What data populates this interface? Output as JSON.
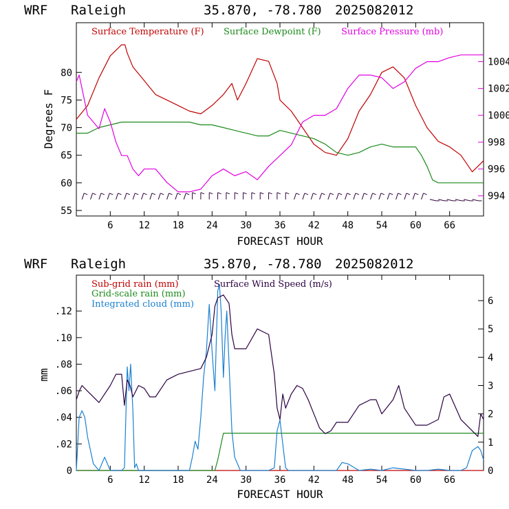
{
  "colors": {
    "temperature": "#c00000",
    "dewpoint": "#1a8a1a",
    "pressure": "#e000e0",
    "subgrid": "#c00000",
    "gridscale": "#1a8a1a",
    "cloud": "#1a80d0",
    "wind": "#2a0040",
    "barbs": "#30003a"
  },
  "chart_data": [
    {
      "type": "line",
      "header": {
        "model": "WRF",
        "site": "Raleigh",
        "coords": "35.870, -78.780",
        "run": "2025082012"
      },
      "xlabel": "FORECAST HOUR",
      "ylabel": "Degrees F",
      "xlim": [
        0,
        72
      ],
      "ylim": [
        54,
        89
      ],
      "y2lim": [
        992.5,
        1006.9
      ],
      "xticks": [
        6,
        12,
        18,
        24,
        30,
        36,
        42,
        48,
        54,
        60,
        66
      ],
      "xtick_labels": [
        "6",
        "12",
        "18",
        "24",
        "30",
        "36",
        "42",
        "48",
        "54",
        "60",
        "66"
      ],
      "yticks": [
        55,
        60,
        65,
        70,
        75,
        80
      ],
      "ytick_labels": [
        "55",
        "60",
        "65",
        "70",
        "75",
        "80"
      ],
      "y2ticks": [
        994,
        996,
        998,
        1000,
        1002,
        1004
      ],
      "y2tick_labels": [
        "994",
        "996",
        "998",
        "1000",
        "1002",
        "1004"
      ],
      "legend": [
        "Surface Temperature (F)",
        "Surface Dewpoint (F)",
        "Surface Pressure (mb)"
      ],
      "legend_position": "top-left",
      "wind_barbs": "y=57",
      "series": [
        {
          "name": "Surface Temperature (F)",
          "axis": "left",
          "x": [
            0,
            2,
            4,
            6,
            8,
            8.6,
            9,
            10,
            12,
            14,
            16,
            18,
            20,
            22,
            24,
            26,
            27.5,
            28.5,
            30,
            32,
            34,
            35.5,
            36,
            38,
            40,
            42,
            44,
            46,
            48,
            50,
            52,
            54,
            56,
            58,
            60,
            62,
            64,
            66,
            68,
            70,
            72
          ],
          "y": [
            71.5,
            74,
            79,
            83,
            85,
            85,
            83.5,
            81,
            78.5,
            76,
            75,
            74,
            73,
            72.5,
            74,
            76,
            78,
            75,
            78,
            82.5,
            82,
            78,
            75,
            73,
            70,
            67,
            65.5,
            65,
            68,
            73,
            76,
            80,
            81,
            79,
            74,
            70,
            67.5,
            66.5,
            65,
            62,
            64
          ]
        },
        {
          "name": "Surface Dewpoint (F)",
          "axis": "left",
          "x": [
            0,
            2,
            4,
            6,
            8,
            10,
            12,
            14,
            16,
            18,
            20,
            22,
            24,
            26,
            28,
            30,
            32,
            34,
            36,
            38,
            40,
            42,
            44,
            46,
            48,
            50,
            52,
            54,
            56,
            58,
            60,
            61,
            62,
            63,
            64,
            66,
            68,
            70,
            72
          ],
          "y": [
            69,
            69,
            70,
            70.5,
            71,
            71,
            71,
            71,
            71,
            71,
            71,
            70.5,
            70.5,
            70,
            69.5,
            69,
            68.5,
            68.5,
            69.5,
            69,
            68.5,
            68,
            67,
            65.5,
            65,
            65.5,
            66.5,
            67,
            66.5,
            66.5,
            66.5,
            65,
            63,
            60.5,
            60,
            60,
            60,
            60,
            60
          ]
        },
        {
          "name": "Surface Pressure (mb)",
          "axis": "right",
          "x": [
            0,
            0.5,
            1,
            2,
            3,
            4,
            5,
            6,
            7,
            8,
            9,
            10,
            11,
            12,
            14,
            16,
            18,
            20,
            22,
            24,
            26,
            28,
            30,
            32,
            34,
            36,
            38,
            40,
            42,
            44,
            46,
            48,
            50,
            52,
            54,
            56,
            58,
            60,
            62,
            64,
            66,
            68,
            70,
            72
          ],
          "y": [
            1002.5,
            1003,
            1002,
            1000,
            999.5,
            999,
            1000.5,
            999.5,
            998,
            997,
            997,
            996,
            995.5,
            996,
            996,
            995,
            994.3,
            994.3,
            994.5,
            995.5,
            996,
            995.5,
            995.8,
            995.2,
            996.2,
            997,
            997.8,
            999.5,
            1000,
            1000,
            1000.5,
            1002,
            1003,
            1003,
            1002.8,
            1002,
            1002.5,
            1003.5,
            1004,
            1004,
            1004.3,
            1004.5,
            1004.5,
            1004.5
          ]
        }
      ]
    },
    {
      "type": "line",
      "header": {
        "model": "WRF",
        "site": "Raleigh",
        "coords": "35.870, -78.780",
        "run": "2025082012"
      },
      "xlabel": "FORECAST HOUR",
      "ylabel": "mm",
      "xlim": [
        0,
        72
      ],
      "ylim": [
        0,
        0.147
      ],
      "y2lim": [
        0,
        6.9
      ],
      "xticks": [
        6,
        12,
        18,
        24,
        30,
        36,
        42,
        48,
        54,
        60,
        66
      ],
      "xtick_labels": [
        "6",
        "12",
        "18",
        "24",
        "30",
        "36",
        "42",
        "48",
        "54",
        "60",
        "66"
      ],
      "yticks": [
        0,
        0.02,
        0.04,
        0.06,
        0.08,
        0.1,
        0.12
      ],
      "ytick_labels": [
        "0",
        ".02",
        ".04",
        ".06",
        ".08",
        ".10",
        ".12"
      ],
      "y2ticks": [
        0,
        1,
        2,
        3,
        4,
        5,
        6
      ],
      "y2tick_labels": [
        "0",
        "1",
        "2",
        "3",
        "4",
        "5",
        "6"
      ],
      "legend": [
        "Sub-grid rain (mm)",
        "Grid-scale rain (mm)",
        "Integrated cloud (mm)",
        "Surface Wind Speed (m/s)"
      ],
      "legend_position": "top-left",
      "series": [
        {
          "name": "Sub-grid rain (mm)",
          "axis": "left",
          "x": [
            0,
            72
          ],
          "y": [
            0,
            0
          ]
        },
        {
          "name": "Grid-scale rain (mm)",
          "axis": "left",
          "x": [
            0,
            24.5,
            25,
            25.5,
            26,
            72
          ],
          "y": [
            0,
            0,
            0.008,
            0.018,
            0.028,
            0.028
          ]
        },
        {
          "name": "Integrated cloud (mm)",
          "axis": "left",
          "x": [
            0,
            0.5,
            1,
            1.5,
            2,
            3,
            4,
            4.5,
            5,
            6,
            7,
            8,
            8.5,
            9,
            9.3,
            9.6,
            10,
            10.3,
            10.6,
            11,
            12,
            14,
            16,
            18,
            20,
            20.5,
            21,
            21.5,
            22,
            22.5,
            23,
            23.5,
            24,
            24.5,
            25,
            25.3,
            25.6,
            26,
            26.3,
            26.6,
            27,
            27.5,
            28,
            29,
            30,
            32,
            34,
            35,
            35.5,
            36,
            36.5,
            37,
            37.5,
            38,
            40,
            44,
            46,
            47,
            48,
            50,
            52,
            54,
            56,
            60,
            62,
            64,
            66,
            68,
            69,
            70,
            71,
            71.5,
            72
          ],
          "y": [
            0,
            0.04,
            0.045,
            0.04,
            0.025,
            0.005,
            0,
            0.005,
            0.01,
            0,
            0,
            0,
            0.002,
            0.078,
            0.06,
            0.08,
            0.045,
            0.002,
            0.005,
            0,
            0,
            0,
            0,
            0,
            0,
            0.01,
            0.022,
            0.016,
            0.04,
            0.07,
            0.09,
            0.125,
            0.09,
            0.06,
            0.135,
            0.14,
            0.12,
            0.07,
            0.1,
            0.12,
            0.08,
            0.03,
            0.01,
            0,
            0,
            0,
            0,
            0.002,
            0.03,
            0.038,
            0.02,
            0.002,
            0,
            0,
            0,
            0,
            0,
            0.006,
            0.005,
            0,
            0.001,
            0,
            0.002,
            0,
            0,
            0.001,
            0,
            0,
            0.002,
            0.015,
            0.018,
            0.015,
            0.008
          ]
        },
        {
          "name": "Surface Wind Speed (m/s)",
          "axis": "right",
          "x": [
            0,
            0.5,
            1,
            2,
            4,
            6,
            7,
            8,
            8.5,
            9,
            9.5,
            10,
            11,
            12,
            13,
            14,
            16,
            18,
            20,
            22,
            23,
            24,
            24.5,
            25,
            26,
            27,
            27.5,
            28,
            30,
            32,
            34,
            35,
            35.5,
            36,
            36.5,
            37,
            38,
            39,
            40,
            41,
            42,
            43,
            44,
            45,
            46,
            48,
            50,
            52,
            53,
            54,
            56,
            57,
            58,
            60,
            62,
            64,
            65,
            66,
            68,
            70,
            71,
            71.5,
            72
          ],
          "y": [
            2.5,
            2.8,
            3.0,
            2.8,
            2.4,
            3.0,
            3.4,
            3.4,
            2.3,
            3.2,
            3.0,
            2.6,
            3.0,
            2.9,
            2.6,
            2.6,
            3.2,
            3.4,
            3.5,
            3.6,
            4.0,
            4.8,
            5.8,
            6.1,
            6.2,
            5.9,
            4.8,
            4.3,
            4.3,
            5.0,
            4.8,
            3.4,
            2.2,
            1.8,
            2.7,
            2.2,
            2.7,
            3.0,
            2.9,
            2.5,
            2.0,
            1.5,
            1.3,
            1.4,
            1.7,
            1.7,
            2.3,
            2.5,
            2.5,
            2.0,
            2.5,
            3.0,
            2.2,
            1.6,
            1.6,
            1.8,
            2.6,
            2.7,
            1.8,
            1.4,
            1.2,
            2.0,
            1.8
          ]
        }
      ]
    }
  ]
}
